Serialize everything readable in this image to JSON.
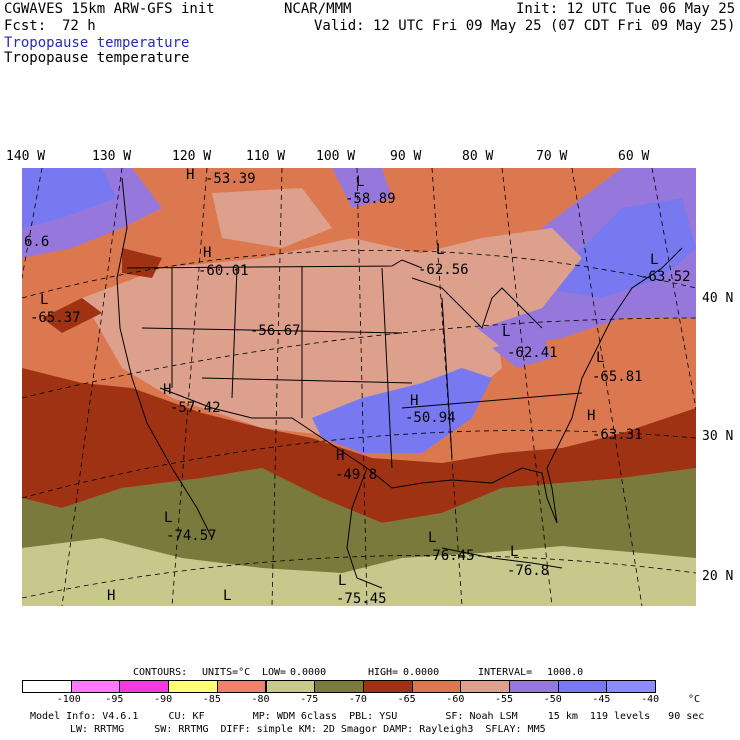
{
  "header": {
    "model": "CGWAVES 15km ARW-GFS init",
    "org": "NCAR/MMM",
    "init": "Init: 12 UTC Tue 06 May 25",
    "fcst_label": "Fcst:",
    "fcst_value": "72 h",
    "valid": "Valid: 12 UTC Fri 09 May 25 (07 CDT Fri 09 May 25)",
    "field_title_1": "Tropopause temperature",
    "field_title_2": "Tropopause temperature"
  },
  "lon_labels": [
    "140 W",
    "130 W",
    "120 W",
    "110 W",
    "100 W",
    "90 W",
    "80 W",
    "70 W",
    "60 W"
  ],
  "lat_labels": [
    "40 N",
    "30 N",
    "20 N"
  ],
  "annotations": [
    {
      "marker": "H",
      "value": "-53.39"
    },
    {
      "marker": "L",
      "value": "-58.89"
    },
    {
      "marker": "H",
      "value": "-60.01"
    },
    {
      "marker": "L",
      "value": "-62.56"
    },
    {
      "marker": "L",
      "value": "-63.52"
    },
    {
      "marker": "L",
      "value": "-65.37"
    },
    {
      "marker": "",
      "value": "-56.67"
    },
    {
      "marker": "L",
      "value": "-62.41"
    },
    {
      "marker": "L",
      "value": "-65.81"
    },
    {
      "marker": "H",
      "value": "-57.42"
    },
    {
      "marker": "H",
      "value": "-50.94"
    },
    {
      "marker": "H",
      "value": "-63.31"
    },
    {
      "marker": "H",
      "value": "-49.8"
    },
    {
      "marker": "L",
      "value": "-74.57"
    },
    {
      "marker": "L",
      "value": "-76.45"
    },
    {
      "marker": "L",
      "value": "-76.8"
    },
    {
      "marker": "L",
      "value": "-75.45"
    },
    {
      "marker": "H",
      "value": ""
    },
    {
      "marker": "L",
      "value": ""
    },
    {
      "marker": "",
      "value": "6.6"
    }
  ],
  "contours": {
    "label": "CONTOURS:",
    "units": "UNITS=°C",
    "low_label": "LOW=",
    "low": "0.0000",
    "high_label": "HIGH=",
    "high": "0.0000",
    "interval_label": "INTERVAL=",
    "interval": "1000.0"
  },
  "colorbar": {
    "unit": "°C",
    "ticks": [
      "-100",
      "-95",
      "-90",
      "-85",
      "-80",
      "-75",
      "-70",
      "-65",
      "-60",
      "-55",
      "-50",
      "-45",
      "-40"
    ],
    "colors": [
      "#ffffff",
      "#ff78ff",
      "#f03cdc",
      "#ffff78",
      "#f08070",
      "#c8c88c",
      "#7a7a3c",
      "#a03214",
      "#dc7850",
      "#dca08c",
      "#9678dc",
      "#7878f0",
      "#8c8cff"
    ]
  },
  "footer": {
    "line1": "Model Info: V4.6.1     CU: KF        MP: WDM 6class  PBL: YSU        SF: Noah LSM     15 km  119 levels   90 sec",
    "line2": "LW: RRTMG     SW: RRTMG  DIFF: simple KM: 2D Smagor DAMP: Rayleigh3  SFLAY: MM5"
  }
}
